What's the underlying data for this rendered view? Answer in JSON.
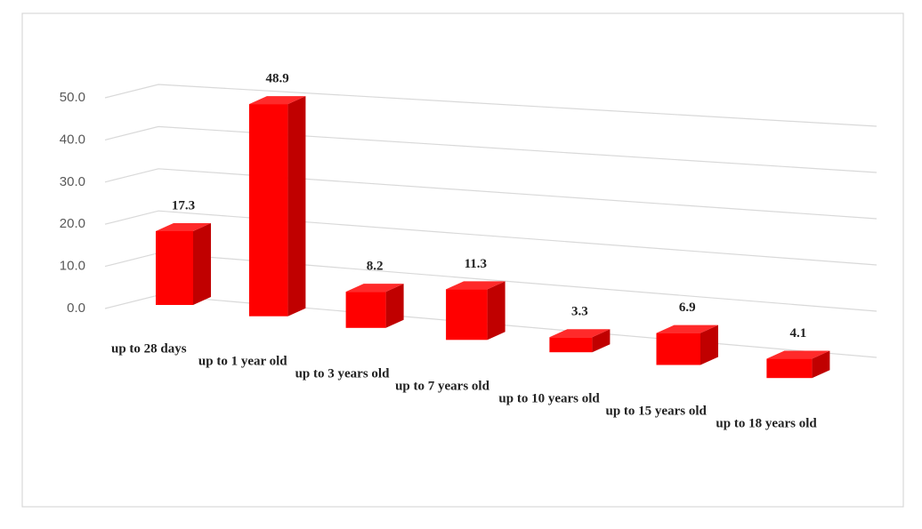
{
  "chart_data": {
    "type": "bar3d",
    "categories": [
      "up to 28 days",
      "up to 1 year old",
      "up to 3 years old",
      "up to 7 years old",
      "up to 10 years old",
      "up to 15 years old",
      "up to 18 years old"
    ],
    "values": [
      17.3,
      48.9,
      8.2,
      11.3,
      3.3,
      6.9,
      4.1
    ],
    "color": "#ff0000",
    "ylim": [
      0,
      50
    ],
    "yticks": [
      {
        "value": 0,
        "label": "0.0"
      },
      {
        "value": 10,
        "label": "10.0"
      },
      {
        "value": 20,
        "label": "20.0"
      },
      {
        "value": 30,
        "label": "30.0"
      },
      {
        "value": 40,
        "label": "40.0"
      },
      {
        "value": 50,
        "label": "50.0"
      }
    ],
    "grid": true
  }
}
